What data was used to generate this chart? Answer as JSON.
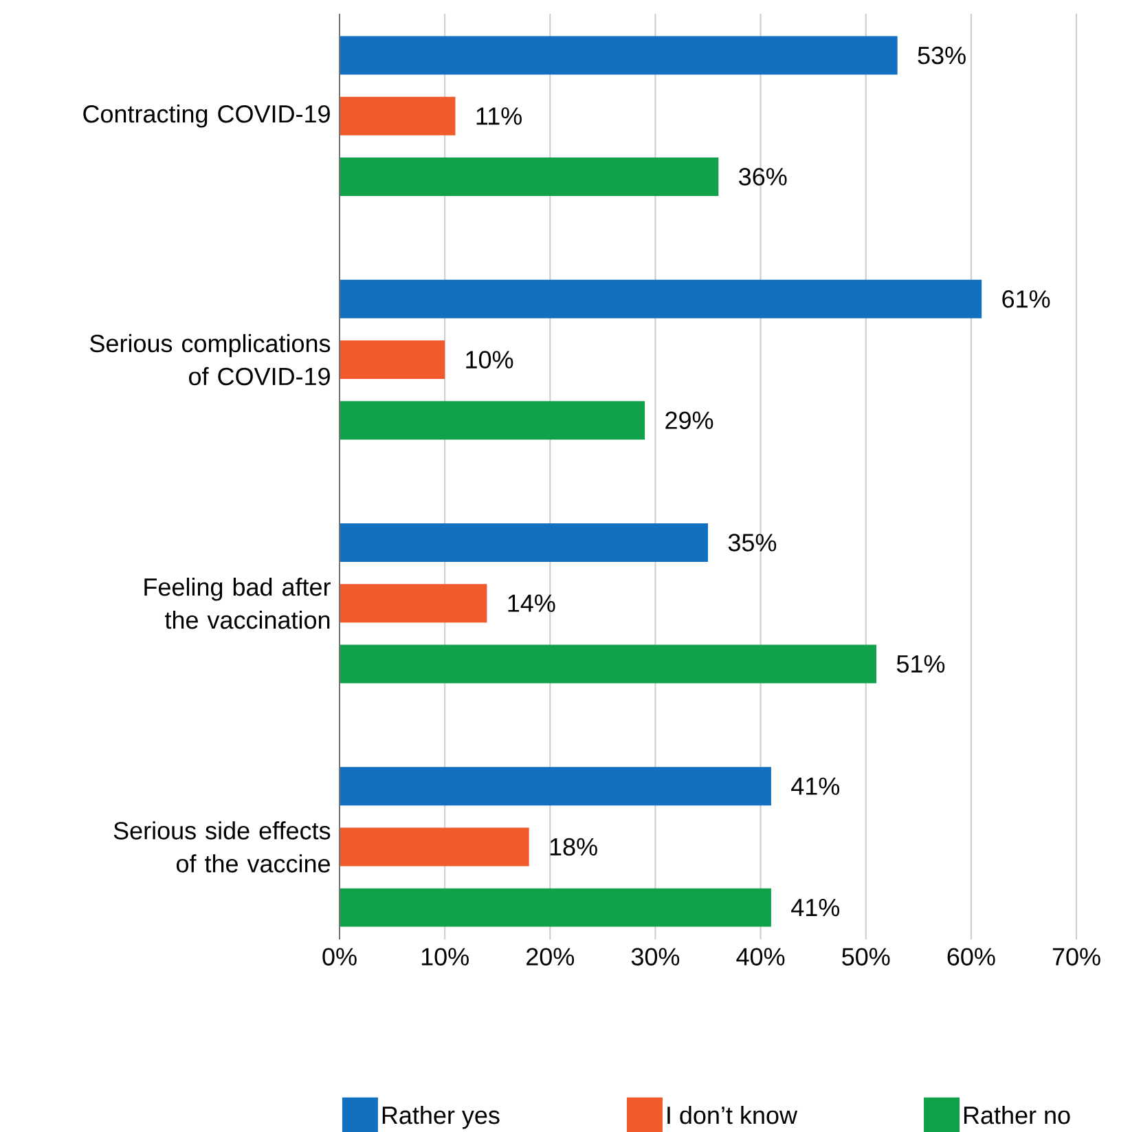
{
  "chart_data": {
    "type": "bar",
    "orientation": "horizontal",
    "categories": [
      "Contracting COVID-19",
      "Serious complications of COVID-19",
      "Feeling bad after the vaccination",
      "Serious side effects of the vaccine"
    ],
    "series": [
      {
        "name": "Rather yes",
        "color": "#1170bf",
        "values": [
          53,
          61,
          35,
          41
        ],
        "value_labels": [
          "53%",
          "61%",
          "35%",
          "41%"
        ]
      },
      {
        "name": "I don’t know",
        "color": "#f15a2b",
        "values": [
          11,
          10,
          14,
          18
        ],
        "value_labels": [
          "11%",
          "10%",
          "14%",
          "18%"
        ]
      },
      {
        "name": "Rather no",
        "color": "#10a14a",
        "values": [
          36,
          29,
          51,
          41
        ],
        "value_labels": [
          "36%",
          "29%",
          "51%",
          "41%"
        ]
      }
    ],
    "xlim": [
      0,
      70
    ],
    "xticks": [
      {
        "value": 0,
        "label": "0%"
      },
      {
        "value": 10,
        "label": "10%"
      },
      {
        "value": 20,
        "label": "20%"
      },
      {
        "value": 30,
        "label": "30%"
      },
      {
        "value": 40,
        "label": "40%"
      },
      {
        "value": 50,
        "label": "50%"
      },
      {
        "value": 60,
        "label": "60%"
      },
      {
        "value": 70,
        "label": "70%"
      }
    ],
    "grid": "x",
    "legend": "bottom"
  }
}
